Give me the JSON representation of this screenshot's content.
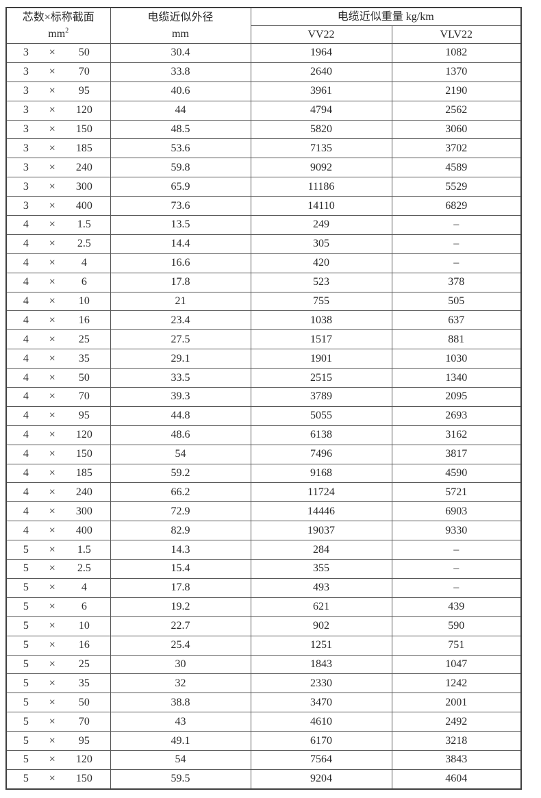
{
  "page": {
    "background_color": "#ffffff",
    "border_color": "#575757",
    "text_color": "#2b2b2b"
  },
  "table": {
    "times_sign": "×",
    "header": {
      "col1_title": "芯数×标称截面",
      "col1_unit_base": "mm",
      "col1_unit_sup": "2",
      "col2_title": "电缆近似外径",
      "col2_unit": "mm",
      "weight_title": "电缆近似重量 kg/km",
      "sub_col_vv22": "VV22",
      "sub_col_vlv22": "VLV22"
    },
    "rows": [
      {
        "cores": "3",
        "size": "50",
        "od": "30.4",
        "vv22": "1964",
        "vlv22": "1082"
      },
      {
        "cores": "3",
        "size": "70",
        "od": "33.8",
        "vv22": "2640",
        "vlv22": "1370"
      },
      {
        "cores": "3",
        "size": "95",
        "od": "40.6",
        "vv22": "3961",
        "vlv22": "2190"
      },
      {
        "cores": "3",
        "size": "120",
        "od": "44",
        "vv22": "4794",
        "vlv22": "2562"
      },
      {
        "cores": "3",
        "size": "150",
        "od": "48.5",
        "vv22": "5820",
        "vlv22": "3060"
      },
      {
        "cores": "3",
        "size": "185",
        "od": "53.6",
        "vv22": "7135",
        "vlv22": "3702"
      },
      {
        "cores": "3",
        "size": "240",
        "od": "59.8",
        "vv22": "9092",
        "vlv22": "4589"
      },
      {
        "cores": "3",
        "size": "300",
        "od": "65.9",
        "vv22": "11186",
        "vlv22": "5529"
      },
      {
        "cores": "3",
        "size": "400",
        "od": "73.6",
        "vv22": "14110",
        "vlv22": "6829"
      },
      {
        "cores": "4",
        "size": "1.5",
        "od": "13.5",
        "vv22": "249",
        "vlv22": "–"
      },
      {
        "cores": "4",
        "size": "2.5",
        "od": "14.4",
        "vv22": "305",
        "vlv22": "–"
      },
      {
        "cores": "4",
        "size": "4",
        "od": "16.6",
        "vv22": "420",
        "vlv22": "–"
      },
      {
        "cores": "4",
        "size": "6",
        "od": "17.8",
        "vv22": "523",
        "vlv22": "378"
      },
      {
        "cores": "4",
        "size": "10",
        "od": "21",
        "vv22": "755",
        "vlv22": "505"
      },
      {
        "cores": "4",
        "size": "16",
        "od": "23.4",
        "vv22": "1038",
        "vlv22": "637"
      },
      {
        "cores": "4",
        "size": "25",
        "od": "27.5",
        "vv22": "1517",
        "vlv22": "881"
      },
      {
        "cores": "4",
        "size": "35",
        "od": "29.1",
        "vv22": "1901",
        "vlv22": "1030"
      },
      {
        "cores": "4",
        "size": "50",
        "od": "33.5",
        "vv22": "2515",
        "vlv22": "1340"
      },
      {
        "cores": "4",
        "size": "70",
        "od": "39.3",
        "vv22": "3789",
        "vlv22": "2095"
      },
      {
        "cores": "4",
        "size": "95",
        "od": "44.8",
        "vv22": "5055",
        "vlv22": "2693"
      },
      {
        "cores": "4",
        "size": "120",
        "od": "48.6",
        "vv22": "6138",
        "vlv22": "3162"
      },
      {
        "cores": "4",
        "size": "150",
        "od": "54",
        "vv22": "7496",
        "vlv22": "3817"
      },
      {
        "cores": "4",
        "size": "185",
        "od": "59.2",
        "vv22": "9168",
        "vlv22": "4590"
      },
      {
        "cores": "4",
        "size": "240",
        "od": "66.2",
        "vv22": "11724",
        "vlv22": "5721"
      },
      {
        "cores": "4",
        "size": "300",
        "od": "72.9",
        "vv22": "14446",
        "vlv22": "6903"
      },
      {
        "cores": "4",
        "size": "400",
        "od": "82.9",
        "vv22": "19037",
        "vlv22": "9330"
      },
      {
        "cores": "5",
        "size": "1.5",
        "od": "14.3",
        "vv22": "284",
        "vlv22": "–"
      },
      {
        "cores": "5",
        "size": "2.5",
        "od": "15.4",
        "vv22": "355",
        "vlv22": "–"
      },
      {
        "cores": "5",
        "size": "4",
        "od": "17.8",
        "vv22": "493",
        "vlv22": "–"
      },
      {
        "cores": "5",
        "size": "6",
        "od": "19.2",
        "vv22": "621",
        "vlv22": "439"
      },
      {
        "cores": "5",
        "size": "10",
        "od": "22.7",
        "vv22": "902",
        "vlv22": "590"
      },
      {
        "cores": "5",
        "size": "16",
        "od": "25.4",
        "vv22": "1251",
        "vlv22": "751"
      },
      {
        "cores": "5",
        "size": "25",
        "od": "30",
        "vv22": "1843",
        "vlv22": "1047"
      },
      {
        "cores": "5",
        "size": "35",
        "od": "32",
        "vv22": "2330",
        "vlv22": "1242"
      },
      {
        "cores": "5",
        "size": "50",
        "od": "38.8",
        "vv22": "3470",
        "vlv22": "2001"
      },
      {
        "cores": "5",
        "size": "70",
        "od": "43",
        "vv22": "4610",
        "vlv22": "2492"
      },
      {
        "cores": "5",
        "size": "95",
        "od": "49.1",
        "vv22": "6170",
        "vlv22": "3218"
      },
      {
        "cores": "5",
        "size": "120",
        "od": "54",
        "vv22": "7564",
        "vlv22": "3843"
      },
      {
        "cores": "5",
        "size": "150",
        "od": "59.5",
        "vv22": "9204",
        "vlv22": "4604"
      }
    ]
  }
}
